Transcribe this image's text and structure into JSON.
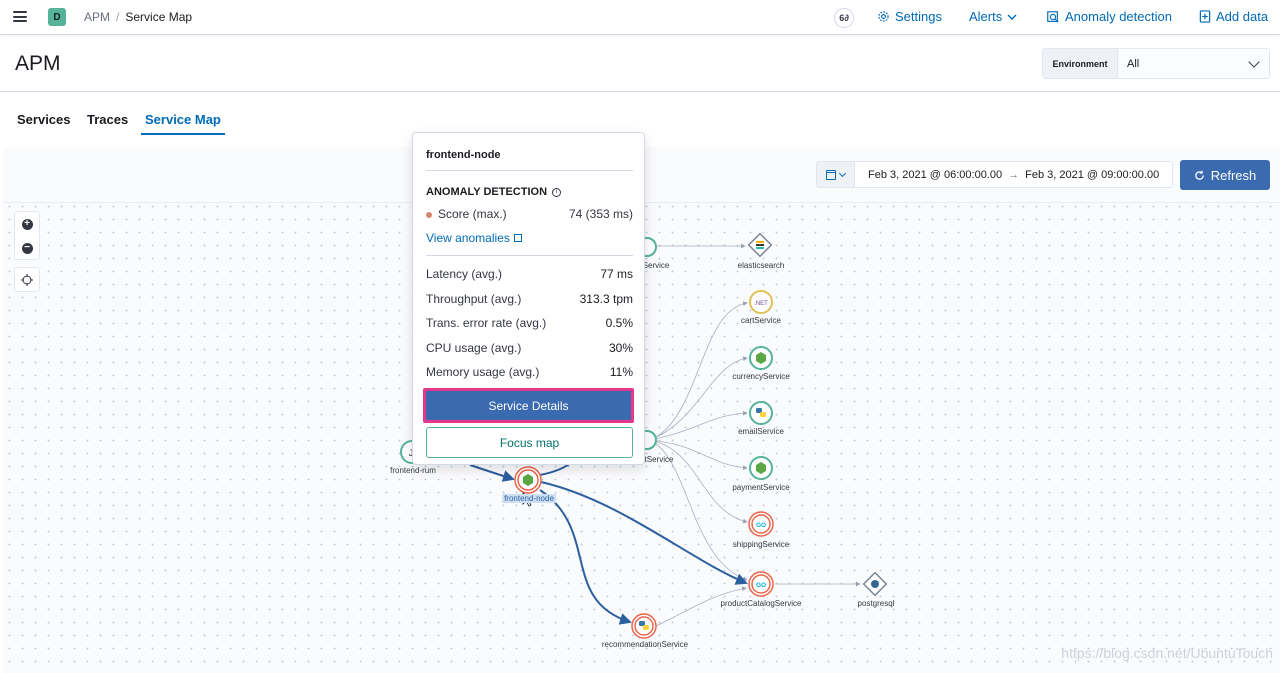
{
  "header": {
    "space_initial": "D",
    "breadcrumb": {
      "app": "APM",
      "separator": "/",
      "current": "Service Map"
    },
    "help_icon_label": "6∂",
    "links": [
      {
        "label": "Settings",
        "icon": "gear-icon"
      },
      {
        "label": "Alerts",
        "icon": "chevron-down-icon"
      },
      {
        "label": "Anomaly detection",
        "icon": "anomaly-icon"
      },
      {
        "label": "Add data",
        "icon": "add-data-icon"
      }
    ]
  },
  "page": {
    "title": "APM"
  },
  "environment": {
    "label": "Environment",
    "value": "All"
  },
  "tabs": [
    {
      "label": "Services",
      "active": false
    },
    {
      "label": "Traces",
      "active": false
    },
    {
      "label": "Service Map",
      "active": true
    }
  ],
  "date_picker": {
    "start": "Feb 3, 2021 @ 06:00:00.00",
    "arrow": "→",
    "end": "Feb 3, 2021 @ 09:00:00.00",
    "refresh_label": "Refresh"
  },
  "map": {
    "nodes": {
      "elasticsearch": "elasticsearch",
      "cart": "cartService",
      "currency": "currencyService",
      "email": "emailService",
      "payment": "paymentService",
      "shipping": "shippingService",
      "productCatalog": "productCatalogService",
      "postgresql": "postgresql",
      "recommendation": "recommendationService",
      "frontendNode": "frontend-node",
      "frontendRum": "frontend-rum",
      "partialTop": "Service",
      "partialMid": "tService"
    },
    "node_glyphs": {
      "cart": ".NET",
      "go": "GO",
      "rum": "J"
    }
  },
  "popover": {
    "service_name": "frontend-node",
    "anomaly_title": "ANOMALY DETECTION",
    "score_label": "Score (max.)",
    "score_value": "74 (353 ms)",
    "view_anomalies": "View anomalies",
    "metrics": [
      {
        "label": "Latency (avg.)",
        "value": "77 ms"
      },
      {
        "label": "Throughput (avg.)",
        "value": "313.3 tpm"
      },
      {
        "label": "Trans. error rate (avg.)",
        "value": "0.5%"
      },
      {
        "label": "CPU usage (avg.)",
        "value": "30%"
      },
      {
        "label": "Memory usage (avg.)",
        "value": "11%"
      }
    ],
    "service_details_button": "Service Details",
    "focus_map_button": "Focus map"
  },
  "watermark": "https://blog.csdn.net/UbuntuTouch",
  "colors": {
    "primary": "#006bb8",
    "button_blue": "#3a6ab0",
    "highlight_pink": "#e5378b",
    "anomaly_red": "#e7664c",
    "node_green": "#54b399"
  }
}
